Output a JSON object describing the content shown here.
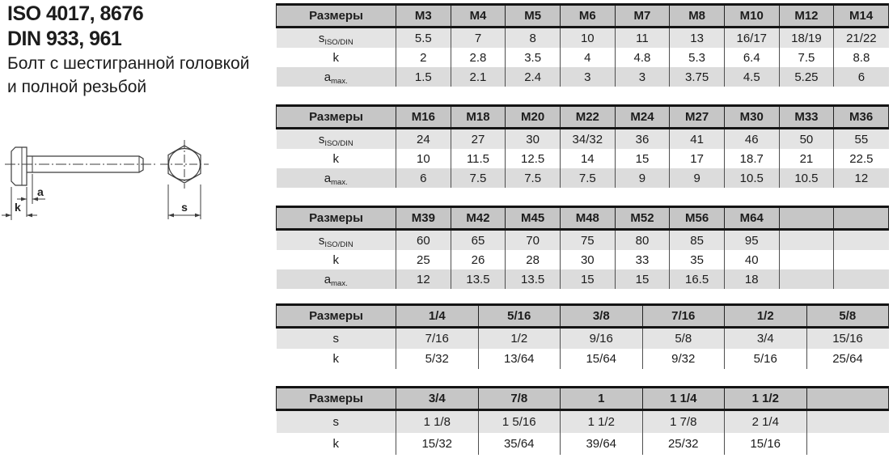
{
  "title": {
    "iso": "ISO 4017, 8676",
    "din": "DIN 933, 961",
    "desc_line1": "Болт с шестигранной головкой",
    "desc_line2": "и полной резьбой"
  },
  "drawing": {
    "labels": {
      "a": "a",
      "k": "k",
      "s": "s"
    }
  },
  "colors": {
    "header_bg": "#c6c6c6",
    "row_s_bg": "#e4e4e4",
    "row_k_bg": "#ffffff",
    "row_a_bg": "#dcdcdc",
    "heavy_border": "#141414",
    "divider": "#4f4f4f"
  },
  "row_label_header": "Размеры",
  "tables": [
    {
      "name": "metric-m3-m14",
      "header": [
        "Размеры",
        "M3",
        "M4",
        "M5",
        "M6",
        "M7",
        "M8",
        "M10",
        "M12",
        "M14"
      ],
      "rows": [
        {
          "label_main": "s",
          "label_sub": "ISO/DIN",
          "shade": "s",
          "values": [
            "5.5",
            "7",
            "8",
            "10",
            "11",
            "13",
            "16/17",
            "18/19",
            "21/22"
          ]
        },
        {
          "label_main": "k",
          "label_sub": "",
          "shade": "k",
          "values": [
            "2",
            "2.8",
            "3.5",
            "4",
            "4.8",
            "5.3",
            "6.4",
            "7.5",
            "8.8"
          ]
        },
        {
          "label_main": "a",
          "label_sub": "max.",
          "shade": "a",
          "values": [
            "1.5",
            "2.1",
            "2.4",
            "3",
            "3",
            "3.75",
            "4.5",
            "5.25",
            "6"
          ]
        }
      ]
    },
    {
      "name": "metric-m16-m36",
      "header": [
        "Размеры",
        "M16",
        "M18",
        "M20",
        "M22",
        "M24",
        "M27",
        "M30",
        "M33",
        "M36"
      ],
      "rows": [
        {
          "label_main": "s",
          "label_sub": "ISO/DIN",
          "shade": "s",
          "values": [
            "24",
            "27",
            "30",
            "34/32",
            "36",
            "41",
            "46",
            "50",
            "55"
          ]
        },
        {
          "label_main": "k",
          "label_sub": "",
          "shade": "k",
          "values": [
            "10",
            "11.5",
            "12.5",
            "14",
            "15",
            "17",
            "18.7",
            "21",
            "22.5"
          ]
        },
        {
          "label_main": "a",
          "label_sub": "max.",
          "shade": "a",
          "values": [
            "6",
            "7.5",
            "7.5",
            "7.5",
            "9",
            "9",
            "10.5",
            "10.5",
            "12"
          ]
        }
      ]
    },
    {
      "name": "metric-m39-m64",
      "header": [
        "Размеры",
        "M39",
        "M42",
        "M45",
        "M48",
        "M52",
        "M56",
        "M64",
        "",
        ""
      ],
      "rows": [
        {
          "label_main": "s",
          "label_sub": "ISO/DIN",
          "shade": "s",
          "values": [
            "60",
            "65",
            "70",
            "75",
            "80",
            "85",
            "95",
            "",
            ""
          ]
        },
        {
          "label_main": "k",
          "label_sub": "",
          "shade": "k",
          "values": [
            "25",
            "26",
            "28",
            "30",
            "33",
            "35",
            "40",
            "",
            ""
          ]
        },
        {
          "label_main": "a",
          "label_sub": "max.",
          "shade": "a",
          "values": [
            "12",
            "13.5",
            "13.5",
            "15",
            "15",
            "16.5",
            "18",
            "",
            ""
          ]
        }
      ]
    },
    {
      "name": "inch-quarter-to-5-8",
      "header": [
        "Размеры",
        "1/4",
        "5/16",
        "3/8",
        "7/16",
        "1/2",
        "5/8"
      ],
      "rows": [
        {
          "label_main": "s",
          "label_sub": "",
          "shade": "s",
          "values": [
            "7/16",
            "1/2",
            "9/16",
            "5/8",
            "3/4",
            "15/16"
          ]
        },
        {
          "label_main": "k",
          "label_sub": "",
          "shade": "k",
          "values": [
            "5/32",
            "13/64",
            "15/64",
            "9/32",
            "5/16",
            "25/64"
          ]
        }
      ]
    },
    {
      "name": "inch-3-4-to-1-half",
      "header": [
        "Размеры",
        "3/4",
        "7/8",
        "1",
        "1 1/4",
        "1 1/2",
        ""
      ],
      "rows": [
        {
          "label_main": "s",
          "label_sub": "",
          "shade": "s",
          "values": [
            "1 1/8",
            "1 5/16",
            "1 1/2",
            "1 7/8",
            "2 1/4",
            ""
          ]
        },
        {
          "label_main": "k",
          "label_sub": "",
          "shade": "k",
          "values": [
            "15/32",
            "35/64",
            "39/64",
            "25/32",
            "15/16",
            ""
          ]
        }
      ]
    }
  ]
}
